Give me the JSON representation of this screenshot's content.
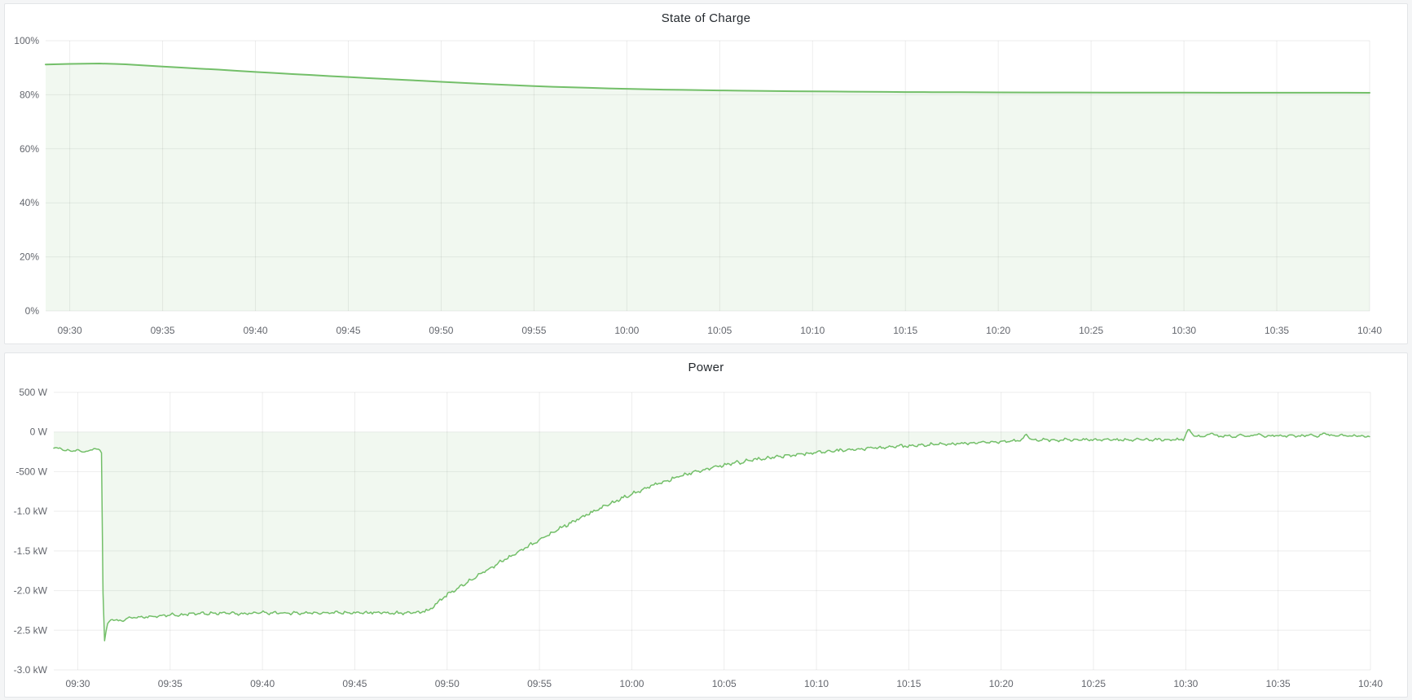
{
  "theme": {
    "page_background": "#f4f5f6",
    "panel_background": "#ffffff",
    "panel_border": "#e3e5e8",
    "title_color": "#24292e",
    "tick_label_color": "#63666d",
    "grid_color": "rgba(0,0,0,0.07)",
    "accent_green": "#73bf69"
  },
  "chart_data": [
    {
      "type": "area",
      "title": "State of Charge",
      "ylabel": "",
      "xlabel": "",
      "unit": "percent",
      "legend": "none",
      "grid": "on",
      "x_domain_minutes_rel_0930": [
        -1.3,
        70
      ],
      "x_tick_minutes": [
        0,
        5,
        10,
        15,
        20,
        25,
        30,
        35,
        40,
        45,
        50,
        55,
        60,
        65,
        70
      ],
      "x_tick_labels": [
        "09:30",
        "09:35",
        "09:40",
        "09:45",
        "09:50",
        "09:55",
        "10:00",
        "10:05",
        "10:10",
        "10:15",
        "10:20",
        "10:25",
        "10:30",
        "10:35",
        "10:40"
      ],
      "ylim": [
        0,
        100
      ],
      "y_ticks": [
        {
          "value": 0,
          "label": "0%"
        },
        {
          "value": 20,
          "label": "20%"
        },
        {
          "value": 40,
          "label": "40%"
        },
        {
          "value": 60,
          "label": "60%"
        },
        {
          "value": 80,
          "label": "80%"
        },
        {
          "value": 100,
          "label": "100%"
        }
      ],
      "line_color": "#73bf69",
      "fill_color": "rgba(115,191,105,0.10)",
      "noise_profile": [
        [
          -1.3,
          0
        ],
        [
          70,
          0
        ]
      ],
      "points": [
        [
          -1.3,
          91.2
        ],
        [
          0,
          91.4
        ],
        [
          0.8,
          91.5
        ],
        [
          1.6,
          91.55
        ],
        [
          2.4,
          91.4
        ],
        [
          3,
          91.25
        ],
        [
          4,
          90.85
        ],
        [
          5,
          90.45
        ],
        [
          6,
          90.05
        ],
        [
          7,
          89.65
        ],
        [
          8,
          89.3
        ],
        [
          9,
          88.85
        ],
        [
          10,
          88.45
        ],
        [
          11,
          88.05
        ],
        [
          12,
          87.65
        ],
        [
          13,
          87.3
        ],
        [
          14,
          86.9
        ],
        [
          15,
          86.55
        ],
        [
          16,
          86.2
        ],
        [
          17,
          85.85
        ],
        [
          18,
          85.5
        ],
        [
          19,
          85.15
        ],
        [
          20,
          84.8
        ],
        [
          21,
          84.45
        ],
        [
          22,
          84.1
        ],
        [
          23,
          83.8
        ],
        [
          24,
          83.5
        ],
        [
          25,
          83.2
        ],
        [
          26,
          82.95
        ],
        [
          27,
          82.75
        ],
        [
          28,
          82.55
        ],
        [
          29,
          82.35
        ],
        [
          30,
          82.2
        ],
        [
          31,
          82.05
        ],
        [
          32,
          81.9
        ],
        [
          33,
          81.8
        ],
        [
          34,
          81.7
        ],
        [
          35,
          81.6
        ],
        [
          36,
          81.5
        ],
        [
          37,
          81.45
        ],
        [
          38,
          81.35
        ],
        [
          39,
          81.3
        ],
        [
          40,
          81.25
        ],
        [
          41,
          81.2
        ],
        [
          42,
          81.15
        ],
        [
          43,
          81.1
        ],
        [
          44,
          81.05
        ],
        [
          45,
          81.0
        ],
        [
          46,
          80.97
        ],
        [
          47,
          80.95
        ],
        [
          48,
          80.93
        ],
        [
          49,
          80.9
        ],
        [
          50,
          80.88
        ],
        [
          52,
          80.85
        ],
        [
          54,
          80.83
        ],
        [
          56,
          80.8
        ],
        [
          58,
          80.79
        ],
        [
          60,
          80.78
        ],
        [
          62,
          80.77
        ],
        [
          64,
          80.76
        ],
        [
          66,
          80.75
        ],
        [
          68,
          80.75
        ],
        [
          70,
          80.74
        ]
      ]
    },
    {
      "type": "area",
      "title": "Power",
      "ylabel": "",
      "xlabel": "",
      "unit": "watt",
      "legend": "none",
      "grid": "on",
      "x_domain_minutes_rel_0930": [
        -1.3,
        70
      ],
      "x_tick_minutes": [
        0,
        5,
        10,
        15,
        20,
        25,
        30,
        35,
        40,
        45,
        50,
        55,
        60,
        65,
        70
      ],
      "x_tick_labels": [
        "09:30",
        "09:35",
        "09:40",
        "09:45",
        "09:50",
        "09:55",
        "10:00",
        "10:05",
        "10:10",
        "10:15",
        "10:20",
        "10:25",
        "10:30",
        "10:35",
        "10:40"
      ],
      "ylim": [
        -3000,
        500
      ],
      "y_ticks": [
        {
          "value": 500,
          "label": "500 W"
        },
        {
          "value": 0,
          "label": "0 W"
        },
        {
          "value": -500,
          "label": "-500 W"
        },
        {
          "value": -1000,
          "label": "-1.0 kW"
        },
        {
          "value": -1500,
          "label": "-1.5 kW"
        },
        {
          "value": -2000,
          "label": "-2.0 kW"
        },
        {
          "value": -2500,
          "label": "-2.5 kW"
        },
        {
          "value": -3000,
          "label": "-3.0 kW"
        }
      ],
      "line_color": "#73bf69",
      "fill_color": "rgba(115,191,105,0.10)",
      "noise_profile": [
        [
          -1.3,
          10
        ],
        [
          1.3,
          10
        ],
        [
          1.6,
          16
        ],
        [
          2.5,
          22
        ],
        [
          18.6,
          22
        ],
        [
          19,
          26
        ],
        [
          40,
          26
        ],
        [
          50.5,
          20
        ],
        [
          59.9,
          20
        ],
        [
          60.3,
          17
        ],
        [
          70,
          17
        ]
      ],
      "points": [
        [
          -1.3,
          -195
        ],
        [
          -0.9,
          -210
        ],
        [
          -0.7,
          -240
        ],
        [
          -0.55,
          -225
        ],
        [
          -0.4,
          -245
        ],
        [
          -0.2,
          -235
        ],
        [
          0,
          -225
        ],
        [
          0.2,
          -250
        ],
        [
          0.45,
          -245
        ],
        [
          0.7,
          -235
        ],
        [
          0.9,
          -205
        ],
        [
          1.05,
          -215
        ],
        [
          1.2,
          -235
        ],
        [
          1.32,
          -280
        ],
        [
          1.38,
          -2540
        ],
        [
          1.45,
          -2625
        ],
        [
          1.55,
          -2480
        ],
        [
          1.65,
          -2400
        ],
        [
          1.8,
          -2370
        ],
        [
          2.0,
          -2355
        ],
        [
          2.2,
          -2380
        ],
        [
          2.4,
          -2400
        ],
        [
          2.55,
          -2360
        ],
        [
          2.7,
          -2340
        ],
        [
          2.9,
          -2350
        ],
        [
          3.1,
          -2330
        ],
        [
          3.4,
          -2345
        ],
        [
          3.7,
          -2325
        ],
        [
          4.0,
          -2335
        ],
        [
          4.5,
          -2320
        ],
        [
          5.0,
          -2305
        ],
        [
          5.5,
          -2315
        ],
        [
          6.0,
          -2295
        ],
        [
          7,
          -2290
        ],
        [
          8,
          -2285
        ],
        [
          9,
          -2290
        ],
        [
          10,
          -2280
        ],
        [
          11,
          -2285
        ],
        [
          12,
          -2280
        ],
        [
          13,
          -2285
        ],
        [
          14,
          -2278
        ],
        [
          15,
          -2282
        ],
        [
          16,
          -2278
        ],
        [
          17,
          -2282
        ],
        [
          18,
          -2276
        ],
        [
          18.6,
          -2272
        ],
        [
          19.0,
          -2245
        ],
        [
          19.4,
          -2175
        ],
        [
          19.8,
          -2090
        ],
        [
          20.2,
          -2030
        ],
        [
          20.7,
          -1950
        ],
        [
          21.2,
          -1880
        ],
        [
          21.7,
          -1810
        ],
        [
          22.2,
          -1740
        ],
        [
          22.7,
          -1670
        ],
        [
          23.2,
          -1600
        ],
        [
          23.7,
          -1535
        ],
        [
          24.2,
          -1465
        ],
        [
          24.7,
          -1400
        ],
        [
          25.2,
          -1335
        ],
        [
          25.7,
          -1270
        ],
        [
          26.2,
          -1205
        ],
        [
          26.7,
          -1145
        ],
        [
          27.2,
          -1085
        ],
        [
          27.7,
          -1030
        ],
        [
          28.2,
          -975
        ],
        [
          28.7,
          -920
        ],
        [
          29.2,
          -865
        ],
        [
          29.7,
          -815
        ],
        [
          30.2,
          -765
        ],
        [
          30.7,
          -715
        ],
        [
          31.2,
          -670
        ],
        [
          31.7,
          -630
        ],
        [
          32.2,
          -590
        ],
        [
          32.7,
          -550
        ],
        [
          33.2,
          -515
        ],
        [
          33.7,
          -485
        ],
        [
          34.2,
          -455
        ],
        [
          34.7,
          -430
        ],
        [
          35.2,
          -410
        ],
        [
          35.7,
          -390
        ],
        [
          36.2,
          -370
        ],
        [
          36.7,
          -350
        ],
        [
          37.2,
          -335
        ],
        [
          37.7,
          -320
        ],
        [
          38.2,
          -305
        ],
        [
          38.7,
          -290
        ],
        [
          39.2,
          -278
        ],
        [
          39.7,
          -266
        ],
        [
          40.5,
          -248
        ],
        [
          41.5,
          -228
        ],
        [
          42.5,
          -210
        ],
        [
          43.5,
          -195
        ],
        [
          44.5,
          -180
        ],
        [
          45.5,
          -168
        ],
        [
          46.5,
          -156
        ],
        [
          47.5,
          -145
        ],
        [
          48.5,
          -135
        ],
        [
          49.5,
          -125
        ],
        [
          50.5,
          -115
        ],
        [
          51.1,
          -108
        ],
        [
          51.35,
          -25
        ],
        [
          51.6,
          -95
        ],
        [
          52,
          -108
        ],
        [
          52.5,
          -98
        ],
        [
          53,
          -106
        ],
        [
          53.5,
          -96
        ],
        [
          54,
          -104
        ],
        [
          54.5,
          -95
        ],
        [
          55,
          -102
        ],
        [
          55.5,
          -93
        ],
        [
          56,
          -100
        ],
        [
          56.5,
          -95
        ],
        [
          57,
          -102
        ],
        [
          57.5,
          -92
        ],
        [
          58,
          -100
        ],
        [
          58.5,
          -95
        ],
        [
          59,
          -100
        ],
        [
          59.5,
          -96
        ],
        [
          59.9,
          -90
        ],
        [
          60.15,
          35
        ],
        [
          60.45,
          -45
        ],
        [
          60.8,
          -60
        ],
        [
          61.2,
          -45
        ],
        [
          61.5,
          -15
        ],
        [
          61.8,
          -65
        ],
        [
          62.2,
          -40
        ],
        [
          62.6,
          -68
        ],
        [
          63.0,
          -35
        ],
        [
          63.4,
          -62
        ],
        [
          63.8,
          -30
        ],
        [
          64.3,
          -58
        ],
        [
          64.8,
          -45
        ],
        [
          65.3,
          -55
        ],
        [
          65.8,
          -42
        ],
        [
          66.3,
          -52
        ],
        [
          66.8,
          -40
        ],
        [
          67.2,
          -55
        ],
        [
          67.5,
          -12
        ],
        [
          67.9,
          -50
        ],
        [
          68.4,
          -38
        ],
        [
          68.9,
          -52
        ],
        [
          69.3,
          -42
        ],
        [
          69.7,
          -58
        ],
        [
          70,
          -48
        ]
      ]
    }
  ]
}
